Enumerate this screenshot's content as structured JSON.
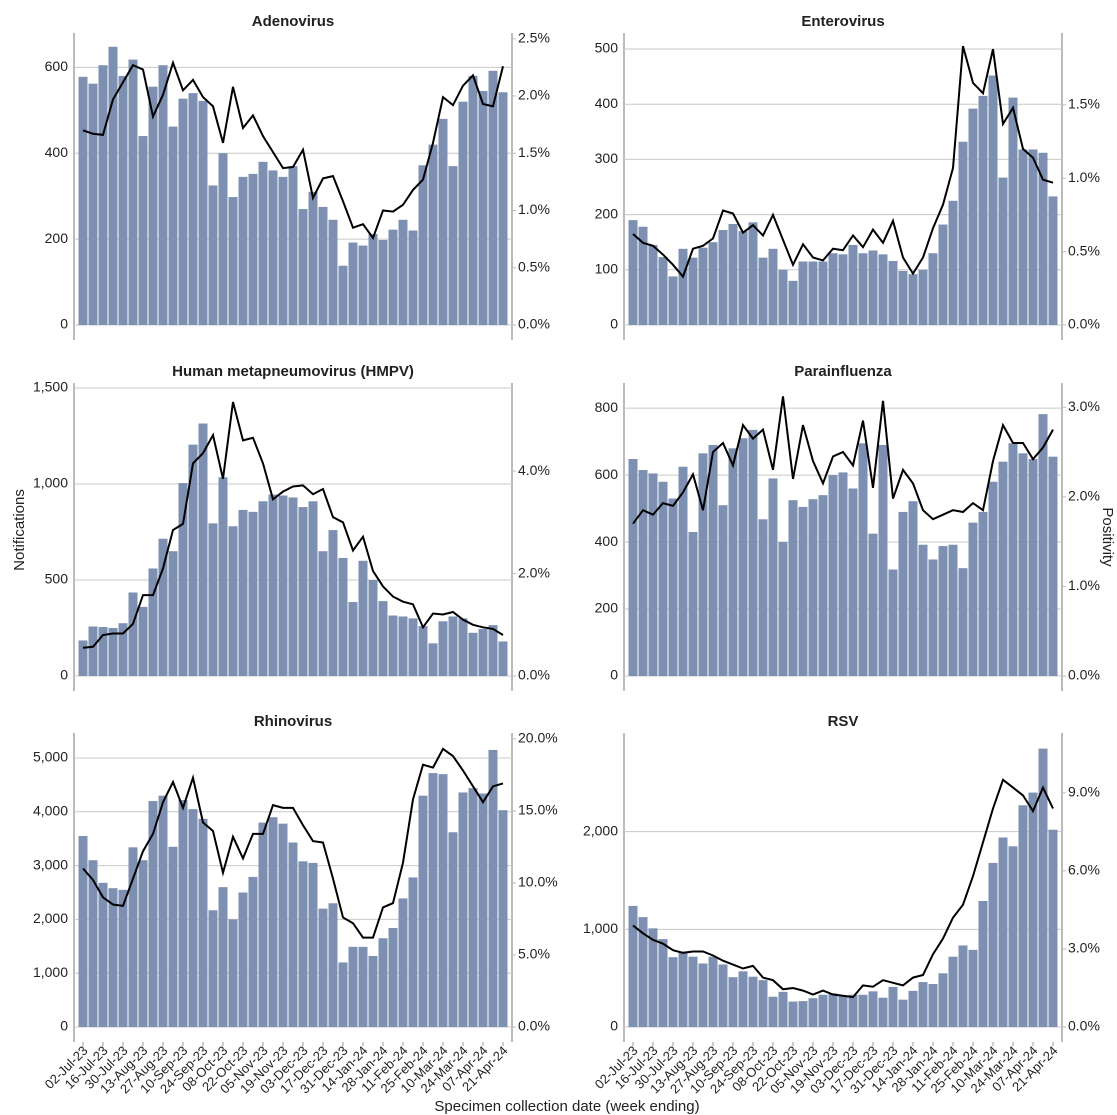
{
  "xlabel": "Specimen collection date (week ending)",
  "ylabel": "Notifications",
  "y2label": "Positivity",
  "categories": [
    "02-Jul-23",
    null,
    "16-Jul-23",
    null,
    "30-Jul-23",
    null,
    "13-Aug-23",
    null,
    "27-Aug-23",
    null,
    "10-Sep-23",
    null,
    "24-Sep-23",
    null,
    "08-Oct-23",
    null,
    "22-Oct-23",
    null,
    "05-Nov-23",
    null,
    "19-Nov-23",
    null,
    "03-Dec-23",
    null,
    "17-Dec-23",
    null,
    "31-Dec-23",
    null,
    "14-Jan-24",
    null,
    "28-Jan-24",
    null,
    "11-Feb-24",
    null,
    "25-Feb-24",
    null,
    "10-Mar-24",
    null,
    "24-Mar-24",
    null,
    "07-Apr-24",
    null,
    "21-Apr-24"
  ],
  "chart_data": [
    {
      "type": "bar",
      "title": "Adenovirus",
      "series": [
        {
          "color": "#7d90b1",
          "values": [
            578,
            562,
            605,
            648,
            580,
            618,
            440,
            555,
            605,
            462,
            527,
            540,
            522,
            325,
            400,
            298,
            345,
            352,
            380,
            360,
            345,
            370,
            270,
            310,
            275,
            245,
            138,
            192,
            185,
            212,
            198,
            222,
            245,
            220,
            372,
            420,
            480,
            370,
            520,
            580,
            545,
            592,
            542
          ]
        },
        {
          "type": "line",
          "axis": "y2",
          "color": "#000000",
          "values": [
            1.7,
            1.67,
            1.66,
            1.97,
            2.12,
            2.27,
            2.23,
            1.82,
            2.01,
            2.29,
            2.05,
            2.14,
            1.99,
            1.91,
            1.59,
            2.08,
            1.72,
            1.83,
            1.65,
            1.51,
            1.37,
            1.38,
            1.53,
            1.11,
            1.28,
            1.3,
            1.08,
            0.85,
            0.88,
            0.76,
            1.0,
            0.99,
            1.05,
            1.18,
            1.27,
            1.59,
            1.99,
            1.92,
            2.09,
            2.18,
            1.93,
            1.91,
            2.26
          ]
        }
      ],
      "ylim": [
        0,
        680
      ],
      "yticks": [
        0,
        200,
        400,
        600
      ],
      "y2lim": [
        0,
        2.55
      ],
      "y2ticks": [
        {
          "value": 0,
          "label": "0.0%"
        },
        {
          "value": 0.5,
          "label": "0.5%"
        },
        {
          "value": 1,
          "label": "1.0%"
        },
        {
          "value": 1.5,
          "label": "1.5%"
        },
        {
          "value": 2,
          "label": "2.0%"
        },
        {
          "value": 2.5,
          "label": "2.5%"
        }
      ],
      "grid": true
    },
    {
      "type": "bar",
      "title": "Enterovirus",
      "series": [
        {
          "color": "#7d90b1",
          "values": [
            190,
            178,
            145,
            123,
            88,
            138,
            122,
            140,
            150,
            172,
            183,
            170,
            186,
            122,
            138,
            100,
            80,
            115,
            115,
            115,
            130,
            128,
            145,
            130,
            135,
            128,
            116,
            98,
            92,
            100,
            130,
            182,
            225,
            332,
            392,
            415,
            452,
            267,
            412,
            318,
            318,
            312,
            233
          ]
        },
        {
          "type": "line",
          "axis": "y2",
          "color": "#000000",
          "values": [
            0.62,
            0.56,
            0.54,
            0.48,
            0.41,
            0.33,
            0.52,
            0.54,
            0.59,
            0.78,
            0.76,
            0.63,
            0.68,
            0.61,
            0.75,
            0.58,
            0.41,
            0.55,
            0.46,
            0.44,
            0.52,
            0.51,
            0.61,
            0.53,
            0.65,
            0.56,
            0.71,
            0.46,
            0.35,
            0.46,
            0.66,
            0.82,
            1.07,
            1.9,
            1.65,
            1.58,
            1.88,
            1.37,
            1.48,
            1.2,
            1.14,
            0.99,
            0.97
          ]
        }
      ],
      "ylim": [
        0,
        529
      ],
      "yticks": [
        0,
        100,
        200,
        300,
        400,
        500
      ],
      "y2lim": [
        0,
        1.99
      ],
      "y2ticks": [
        {
          "value": 0,
          "label": "0.0%"
        },
        {
          "value": 0.5,
          "label": "0.5%"
        },
        {
          "value": 1,
          "label": "1.0%"
        },
        {
          "value": 1.5,
          "label": "1.5%"
        }
      ],
      "grid": true
    },
    {
      "type": "bar",
      "title": "Human metapneumovirus (HMPV)",
      "series": [
        {
          "color": "#7d90b1",
          "values": [
            185,
            258,
            255,
            250,
            275,
            435,
            360,
            560,
            715,
            650,
            1005,
            1205,
            1315,
            795,
            1035,
            780,
            865,
            855,
            910,
            945,
            940,
            930,
            880,
            910,
            650,
            760,
            615,
            385,
            600,
            500,
            390,
            315,
            310,
            300,
            260,
            170,
            285,
            310,
            300,
            225,
            245,
            265,
            180
          ]
        },
        {
          "type": "line",
          "axis": "y2",
          "color": "#000000",
          "values": [
            0.55,
            0.57,
            0.8,
            0.83,
            0.83,
            1.02,
            1.58,
            1.58,
            2.1,
            2.85,
            2.97,
            4.15,
            4.35,
            4.7,
            3.85,
            5.35,
            4.6,
            4.65,
            4.15,
            3.45,
            3.6,
            3.7,
            3.72,
            3.55,
            3.65,
            3.1,
            3.0,
            2.45,
            2.72,
            2.05,
            1.75,
            1.55,
            1.45,
            1.4,
            0.95,
            1.22,
            1.2,
            1.25,
            1.1,
            1.0,
            0.95,
            0.92,
            0.8
          ]
        }
      ],
      "ylim": [
        0,
        1526
      ],
      "yticks": [
        0,
        500,
        {
          "value": 1000,
          "label": "1,000"
        },
        {
          "value": 1500,
          "label": "1,500"
        }
      ],
      "y2lim": [
        0,
        5.72
      ],
      "y2ticks": [
        {
          "value": 0,
          "label": "0.0%"
        },
        {
          "value": 2,
          "label": "2.0%"
        },
        {
          "value": 4,
          "label": "4.0%"
        }
      ],
      "grid": true
    },
    {
      "type": "bar",
      "title": "Parainfluenza",
      "series": [
        {
          "color": "#7d90b1",
          "values": [
            648,
            615,
            605,
            580,
            530,
            625,
            430,
            665,
            690,
            510,
            680,
            710,
            735,
            468,
            590,
            400,
            525,
            505,
            528,
            540,
            600,
            608,
            560,
            695,
            425,
            690,
            318,
            490,
            522,
            392,
            348,
            388,
            392,
            322,
            458,
            490,
            580,
            640,
            695,
            665,
            648,
            782,
            655
          ]
        },
        {
          "type": "line",
          "axis": "y2",
          "color": "#000000",
          "values": [
            1.7,
            1.85,
            1.8,
            1.93,
            1.9,
            2.05,
            2.25,
            1.85,
            2.5,
            2.6,
            2.35,
            2.8,
            2.65,
            2.75,
            2.3,
            3.12,
            2.2,
            2.8,
            2.4,
            2.15,
            2.45,
            2.5,
            2.35,
            2.85,
            2.1,
            3.07,
            1.98,
            2.3,
            2.15,
            1.85,
            1.75,
            1.8,
            1.85,
            1.83,
            1.93,
            1.85,
            2.4,
            2.8,
            2.6,
            2.6,
            2.42,
            2.55,
            2.75
          ]
        }
      ],
      "ylim": [
        0,
        875
      ],
      "yticks": [
        0,
        200,
        400,
        600,
        800
      ],
      "y2lim": [
        0,
        3.27
      ],
      "y2ticks": [
        {
          "value": 0,
          "label": "0.0%"
        },
        {
          "value": 1,
          "label": "1.0%"
        },
        {
          "value": 2,
          "label": "2.0%"
        },
        {
          "value": 3,
          "label": "3.0%"
        }
      ],
      "grid": true
    },
    {
      "type": "bar",
      "title": "Rhinovirus",
      "series": [
        {
          "color": "#7d90b1",
          "values": [
            3550,
            3100,
            2680,
            2580,
            2550,
            3340,
            3100,
            4200,
            4300,
            3350,
            4220,
            4050,
            3870,
            2170,
            2600,
            2000,
            2500,
            2790,
            3800,
            3900,
            3780,
            3430,
            3080,
            3050,
            2200,
            2300,
            1200,
            1490,
            1490,
            1320,
            1650,
            1840,
            2390,
            2780,
            4300,
            4720,
            4700,
            3620,
            4360,
            4440,
            4340,
            5150,
            4030
          ]
        },
        {
          "type": "line",
          "axis": "y2",
          "color": "#000000",
          "values": [
            11.0,
            10.2,
            9.0,
            8.5,
            8.4,
            10.3,
            12.2,
            13.4,
            15.6,
            17.0,
            15.2,
            17.3,
            14.2,
            13.6,
            10.7,
            13.2,
            11.7,
            13.4,
            13.4,
            15.4,
            15.2,
            15.2,
            14.0,
            12.9,
            12.8,
            10.3,
            7.6,
            7.2,
            6.2,
            6.2,
            8.3,
            8.6,
            11.4,
            15.8,
            18.2,
            18.0,
            19.3,
            18.8,
            17.8,
            16.7,
            15.6,
            16.7,
            16.9
          ]
        }
      ],
      "ylim": [
        0,
        5465
      ],
      "yticks": [
        0,
        {
          "value": 1000,
          "label": "1,000"
        },
        {
          "value": 2000,
          "label": "2,000"
        },
        {
          "value": 3000,
          "label": "3,000"
        },
        {
          "value": 4000,
          "label": "4,000"
        },
        {
          "value": 5000,
          "label": "5,000"
        }
      ],
      "y2lim": [
        0,
        20.4
      ],
      "y2ticks": [
        {
          "value": 0,
          "label": "0.0%"
        },
        {
          "value": 5,
          "label": "5.0%"
        },
        {
          "value": 10,
          "label": "10.0%"
        },
        {
          "value": 15,
          "label": "15.0%"
        },
        {
          "value": 20,
          "label": "20.0%"
        }
      ],
      "grid": true
    },
    {
      "type": "bar",
      "title": "RSV",
      "series": [
        {
          "color": "#7d90b1",
          "values": [
            1240,
            1125,
            1010,
            900,
            715,
            760,
            720,
            650,
            720,
            640,
            510,
            570,
            515,
            480,
            310,
            360,
            260,
            265,
            295,
            330,
            345,
            320,
            330,
            330,
            365,
            300,
            410,
            280,
            370,
            460,
            440,
            550,
            720,
            835,
            790,
            1290,
            1680,
            1940,
            1850,
            2270,
            2400,
            2850,
            2020
          ]
        },
        {
          "type": "line",
          "axis": "y2",
          "color": "#000000",
          "values": [
            3.9,
            3.6,
            3.35,
            3.2,
            2.95,
            2.85,
            2.9,
            2.9,
            2.75,
            2.55,
            2.4,
            2.25,
            2.35,
            1.9,
            1.8,
            1.45,
            1.5,
            1.4,
            1.25,
            1.4,
            1.25,
            1.2,
            1.15,
            1.6,
            1.55,
            1.8,
            1.7,
            1.6,
            1.9,
            2.0,
            2.8,
            3.4,
            4.2,
            4.7,
            5.8,
            7.1,
            8.4,
            9.5,
            9.2,
            8.9,
            8.3,
            9.2,
            8.4
          ]
        }
      ],
      "ylim": [
        0,
        3010
      ],
      "yticks": [
        0,
        {
          "value": 1000,
          "label": "1,000"
        },
        {
          "value": 2000,
          "label": "2,000"
        }
      ],
      "y2lim": [
        0,
        11.3
      ],
      "y2ticks": [
        {
          "value": 0,
          "label": "0.0%"
        },
        {
          "value": 3,
          "label": "3.0%"
        },
        {
          "value": 6,
          "label": "6.0%"
        },
        {
          "value": 9,
          "label": "9.0%"
        }
      ],
      "grid": true
    }
  ]
}
